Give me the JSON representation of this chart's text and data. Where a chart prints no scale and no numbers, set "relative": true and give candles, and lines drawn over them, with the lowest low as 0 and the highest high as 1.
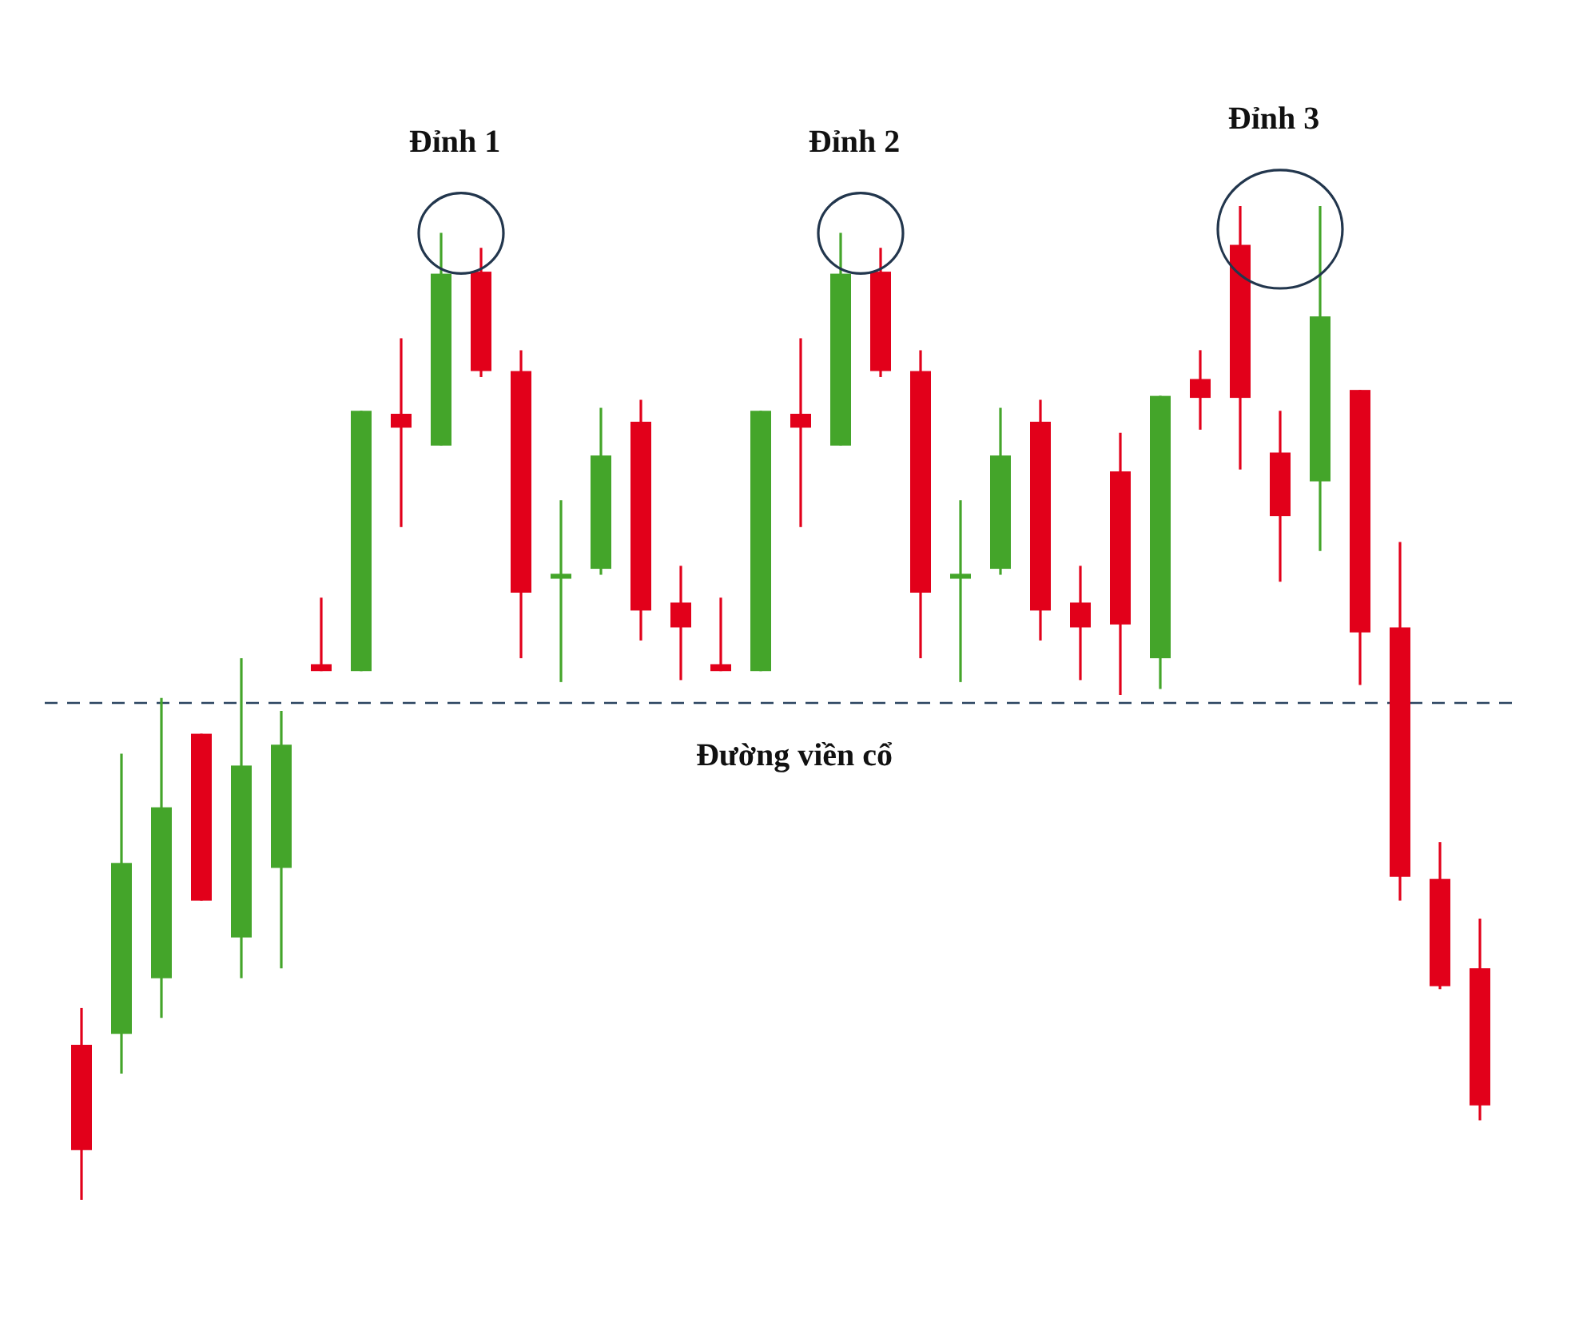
{
  "chart_data": {
    "type": "candlestick",
    "relative": true,
    "categories": [
      null,
      null,
      null,
      null,
      null,
      null,
      null,
      null,
      null,
      null,
      null,
      null,
      null,
      null,
      null,
      null,
      null,
      null,
      null,
      null,
      null,
      null,
      null,
      null,
      null,
      null,
      null,
      null,
      null,
      null,
      null,
      null,
      null,
      null,
      null,
      null
    ],
    "ohlc": [
      [
        0.156,
        0.193,
        0,
        0.05
      ],
      [
        0.167,
        0.449,
        0.127,
        0.339
      ],
      [
        0.223,
        0.505,
        0.183,
        0.395
      ],
      [
        0.469,
        0.469,
        0.301,
        0.301
      ],
      [
        0.264,
        0.545,
        0.223,
        0.437
      ],
      [
        0.334,
        0.492,
        0.233,
        0.458
      ],
      [
        0.539,
        0.606,
        0.532,
        0.532
      ],
      [
        0.532,
        0.794,
        0.532,
        0.794
      ],
      [
        0.791,
        0.867,
        0.677,
        0.777
      ],
      [
        0.759,
        0.973,
        0.759,
        0.932
      ],
      [
        0.934,
        0.958,
        0.828,
        0.834
      ],
      [
        0.834,
        0.855,
        0.545,
        0.611
      ],
      [
        0.625,
        0.704,
        0.521,
        0.63
      ],
      [
        0.635,
        0.797,
        0.629,
        0.749
      ],
      [
        0.783,
        0.805,
        0.563,
        0.593
      ],
      [
        0.601,
        0.638,
        0.523,
        0.576
      ],
      [
        0.539,
        0.606,
        0.532,
        0.532
      ],
      [
        0.532,
        0.794,
        0.532,
        0.794
      ],
      [
        0.791,
        0.867,
        0.677,
        0.777
      ],
      [
        0.759,
        0.973,
        0.759,
        0.932
      ],
      [
        0.934,
        0.958,
        0.828,
        0.834
      ],
      [
        0.834,
        0.855,
        0.545,
        0.611
      ],
      [
        0.625,
        0.704,
        0.521,
        0.63
      ],
      [
        0.635,
        0.797,
        0.629,
        0.749
      ],
      [
        0.783,
        0.805,
        0.563,
        0.593
      ],
      [
        0.601,
        0.638,
        0.523,
        0.576
      ],
      [
        0.733,
        0.772,
        0.508,
        0.579
      ],
      [
        0.545,
        0.809,
        0.514,
        0.809
      ],
      [
        0.826,
        0.855,
        0.775,
        0.807
      ],
      [
        0.961,
        1,
        0.735,
        0.807
      ],
      [
        0.752,
        0.794,
        0.622,
        0.688
      ],
      [
        0.723,
        1,
        0.653,
        0.889
      ],
      [
        0.815,
        0.815,
        0.518,
        0.571
      ],
      [
        0.576,
        0.662,
        0.301,
        0.325
      ],
      [
        0.323,
        0.36,
        0.212,
        0.215
      ],
      [
        0.233,
        0.283,
        0.08,
        0.095
      ]
    ],
    "colors": [
      "#e2001a",
      "#44a52a",
      "#44a52a",
      "#e2001a",
      "#44a52a",
      "#44a52a",
      "#e2001a",
      "#44a52a",
      "#e2001a",
      "#44a52a",
      "#e2001a",
      "#e2001a",
      "#44a52a",
      "#44a52a",
      "#e2001a",
      "#e2001a",
      "#e2001a",
      "#44a52a",
      "#e2001a",
      "#44a52a",
      "#e2001a",
      "#e2001a",
      "#44a52a",
      "#44a52a",
      "#e2001a",
      "#e2001a",
      "#e2001a",
      "#44a52a",
      "#e2001a",
      "#e2001a",
      "#e2001a",
      "#44a52a",
      "#e2001a",
      "#e2001a",
      "#e2001a",
      "#e2001a"
    ],
    "ref_lines": [
      {
        "axis": "y",
        "value": 0.5,
        "label": "Đường viền cổ",
        "color": "#2b4460",
        "line_style": "dashed"
      }
    ],
    "annotations": [
      "Đỉnh 1",
      "Đỉnh 2",
      "Đỉnh 3"
    ]
  }
}
